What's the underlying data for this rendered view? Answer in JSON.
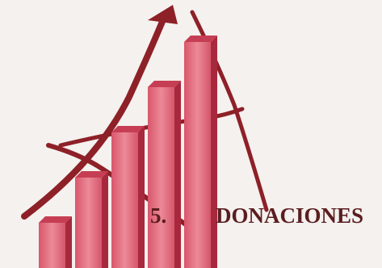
{
  "heading": {
    "number": "5.",
    "title": "DONACIONES"
  },
  "chart_data": {
    "type": "bar",
    "categories": [
      "",
      "",
      "",
      "",
      ""
    ],
    "values": [
      1,
      2,
      3,
      4,
      5
    ],
    "title": "",
    "xlabel": "",
    "ylabel": "",
    "ylim": [
      0,
      5.3
    ],
    "grid": false,
    "legend": "none",
    "decoration": [
      "upward-arrow",
      "curved-swooshes"
    ]
  },
  "colors": {
    "bar_front": "#e06a7c",
    "bar_side": "#a8283d",
    "bar_top": "#c63e53",
    "swoosh": "#8e2027",
    "background": "#f4f1ef",
    "heading_text": "#5b1e1f"
  }
}
